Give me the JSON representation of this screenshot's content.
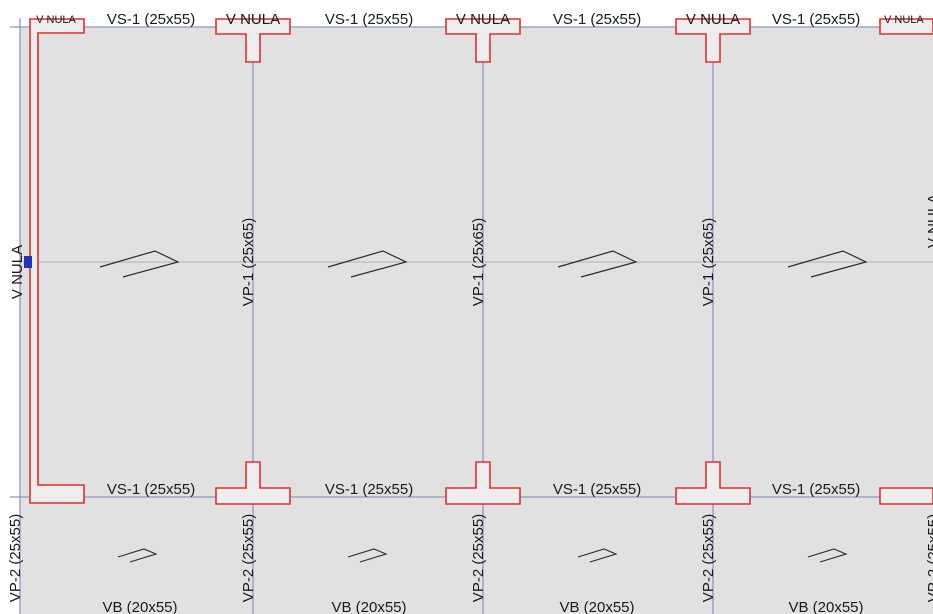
{
  "labels": {
    "v_nula_small": "V NULA",
    "v_nula": "V NULA",
    "vs1": "VS-1 (25x55)",
    "vp1": "VP-1 (25x65)",
    "vp2": "VP-2 (25x55)",
    "vb": "VB (20x55)",
    "vp2_cut": "VP-2 (25x55)"
  },
  "colors": {
    "slab_fill": "#e1e1e1",
    "axis_line": "#8c96c8",
    "support_outline": "#e0302e",
    "text": "#1a1a1a",
    "node_marker": "#2433b8"
  }
}
